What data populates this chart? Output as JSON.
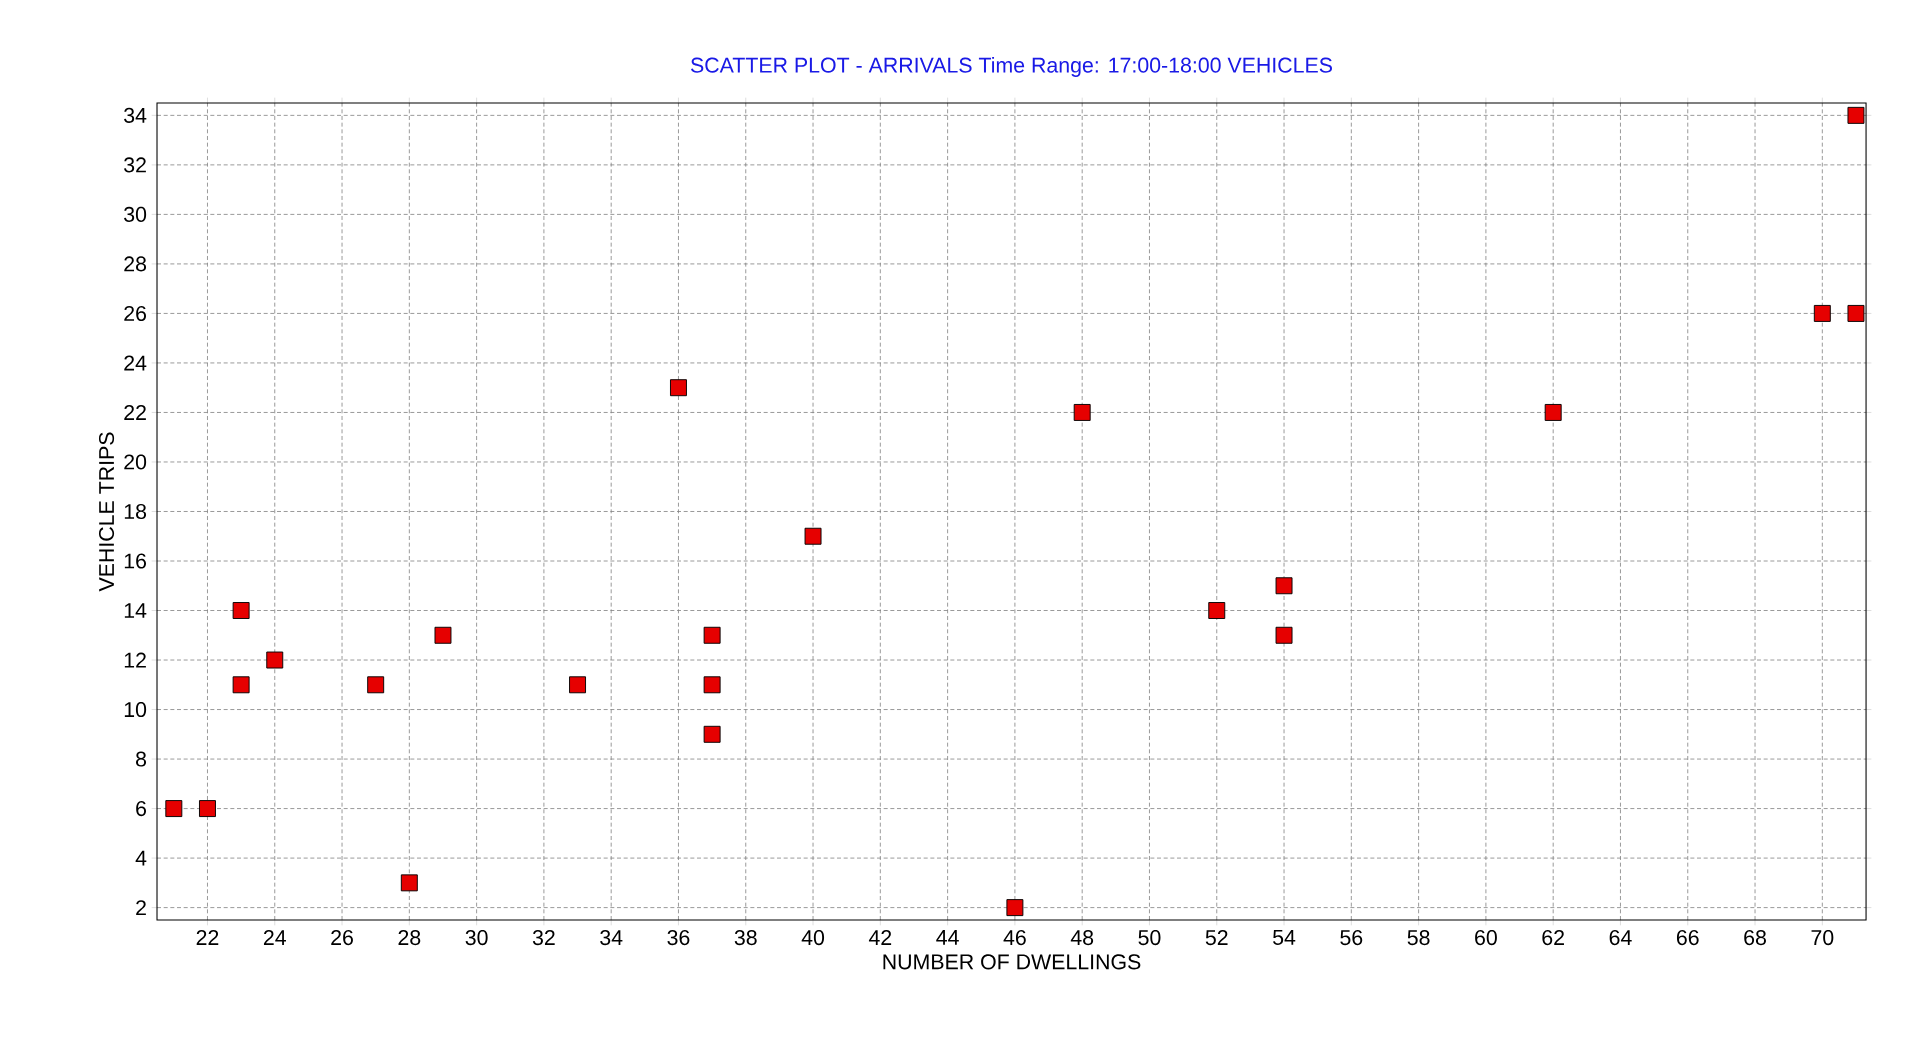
{
  "chart_data": {
    "type": "scatter",
    "title": "SCATTER PLOT - ARRIVALS      Time Range: 17:00-18:00      VEHICLES",
    "xlabel": "NUMBER OF DWELLINGS",
    "ylabel": "VEHICLE TRIPS",
    "x": [
      21,
      22,
      23,
      23,
      24,
      27,
      28,
      29,
      33,
      36,
      37,
      37,
      37,
      40,
      46,
      48,
      52,
      54,
      54,
      62,
      70,
      71,
      71
    ],
    "values": [
      6,
      6,
      14,
      11,
      12,
      11,
      3,
      13,
      11,
      23,
      13,
      11,
      9,
      17,
      2,
      22,
      14,
      15,
      13,
      22,
      26,
      26,
      34
    ],
    "color": "#e60000",
    "marker": "square",
    "grid": true,
    "xlim": [
      20.5,
      71.3
    ],
    "ylim": [
      1.5,
      34.5
    ],
    "xticks": [
      22,
      24,
      26,
      28,
      30,
      32,
      34,
      36,
      38,
      40,
      42,
      44,
      46,
      48,
      50,
      52,
      54,
      56,
      58,
      60,
      62,
      64,
      66,
      68,
      70
    ],
    "yticks": [
      2,
      4,
      6,
      8,
      10,
      12,
      14,
      16,
      18,
      20,
      22,
      24,
      26,
      28,
      30,
      32,
      34
    ]
  }
}
